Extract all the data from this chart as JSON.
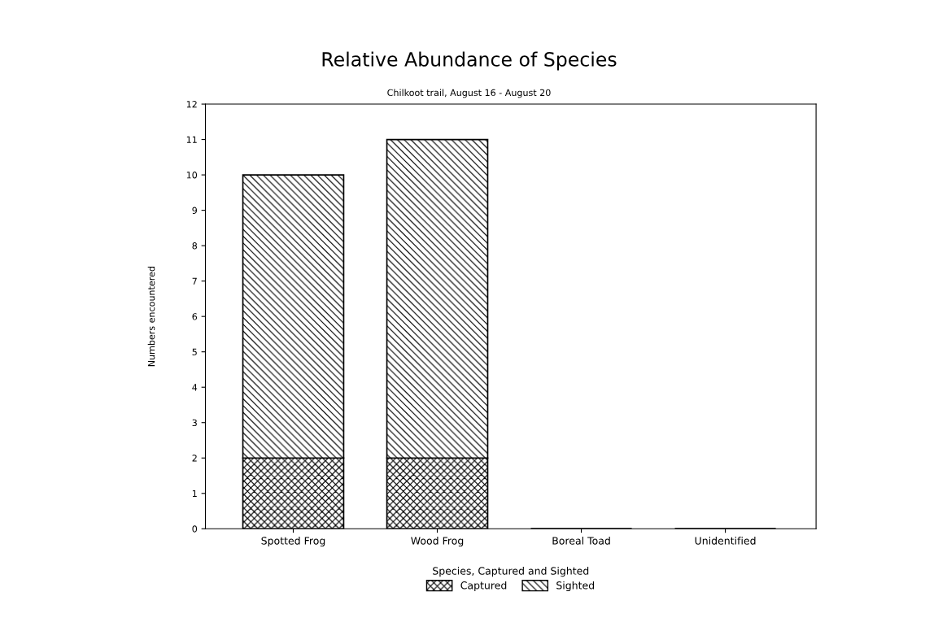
{
  "chart_data": {
    "type": "bar",
    "title": "Relative Abundance of Species",
    "subtitle": "Chilkoot trail, August 16 - August 20",
    "xlabel": "Species, Captured and Sighted",
    "ylabel": "Numbers encountered",
    "categories": [
      "Spotted Frog",
      "Wood Frog",
      "Boreal Toad",
      "Unidentified"
    ],
    "stacked": true,
    "series": [
      {
        "name": "Captured",
        "color": "#000000",
        "values": [
          2,
          2,
          0,
          0
        ]
      },
      {
        "name": "Sighted",
        "color": "#000000",
        "values": [
          8,
          9,
          0,
          0
        ]
      }
    ],
    "ylim": [
      0,
      12
    ],
    "yticks": [
      0,
      1,
      2,
      3,
      4,
      5,
      6,
      7,
      8,
      9,
      10,
      11,
      12
    ],
    "grid": false,
    "legend": "bottom"
  }
}
